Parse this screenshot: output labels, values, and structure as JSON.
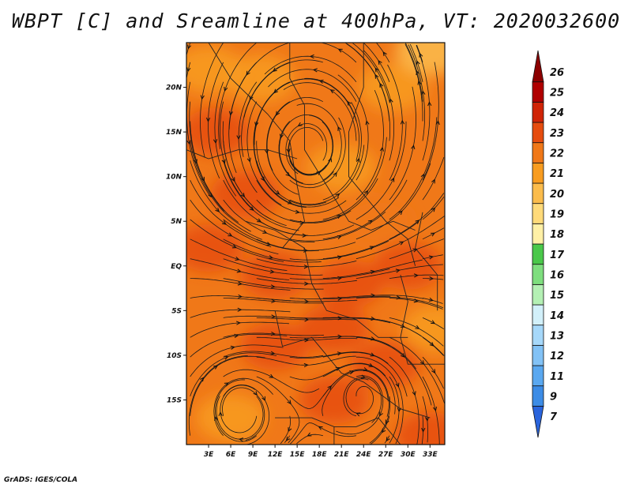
{
  "title": "WBPT [C] and Sreamline at 400hPa, VT: 2020032600",
  "credit": "GrADS: IGES/COLA",
  "map": {
    "lon_range": [
      0,
      35
    ],
    "lat_range": [
      -20,
      25
    ],
    "lon_ticks": [
      {
        "value": 3,
        "label": "3E"
      },
      {
        "value": 6,
        "label": "6E"
      },
      {
        "value": 9,
        "label": "9E"
      },
      {
        "value": 12,
        "label": "12E"
      },
      {
        "value": 15,
        "label": "15E"
      },
      {
        "value": 18,
        "label": "18E"
      },
      {
        "value": 21,
        "label": "21E"
      },
      {
        "value": 24,
        "label": "24E"
      },
      {
        "value": 27,
        "label": "27E"
      },
      {
        "value": 30,
        "label": "30E"
      },
      {
        "value": 33,
        "label": "33E"
      }
    ],
    "lat_ticks": [
      {
        "value": 20,
        "label": "20N"
      },
      {
        "value": 15,
        "label": "15N"
      },
      {
        "value": 10,
        "label": "10N"
      },
      {
        "value": 5,
        "label": "5N"
      },
      {
        "value": 0,
        "label": "EQ"
      },
      {
        "value": -5,
        "label": "5S"
      },
      {
        "value": -10,
        "label": "10S"
      },
      {
        "value": -15,
        "label": "15S"
      }
    ],
    "vortices": [
      {
        "lon": 16.5,
        "lat": 13,
        "sense": "cyclonic",
        "strength": 1.0
      },
      {
        "lon": 7,
        "lat": -16,
        "sense": "anticyclonic",
        "strength": 0.6
      },
      {
        "lon": 24,
        "lat": -14.5,
        "sense": "anticyclonic",
        "strength": 0.5
      }
    ],
    "wbpt_zones": [
      {
        "lon": 4,
        "lat": 15,
        "value": 23
      },
      {
        "lon": 8,
        "lat": 8,
        "value": 23
      },
      {
        "lon": 3,
        "lat": 2,
        "value": 23
      },
      {
        "lon": 12,
        "lat": -1,
        "value": 23
      },
      {
        "lon": 22,
        "lat": -2,
        "value": 23
      },
      {
        "lon": 30,
        "lat": 0,
        "value": 23
      },
      {
        "lon": 20,
        "lat": -7,
        "value": 23
      },
      {
        "lon": 12,
        "lat": -9,
        "value": 23
      },
      {
        "lon": 27,
        "lat": -11,
        "value": 23
      },
      {
        "lon": 20,
        "lat": -15,
        "value": 23
      },
      {
        "lon": 33,
        "lat": -19,
        "value": 23
      },
      {
        "lon": 21,
        "lat": 11,
        "value": 21
      },
      {
        "lon": 26,
        "lat": 5,
        "value": 22
      },
      {
        "lon": 3,
        "lat": 22,
        "value": 21
      },
      {
        "lon": 10,
        "lat": 21,
        "value": 21
      },
      {
        "lon": 28,
        "lat": 20,
        "value": 21
      },
      {
        "lon": 33,
        "lat": 24,
        "value": 20
      },
      {
        "lon": 6,
        "lat": -17,
        "value": 21
      },
      {
        "lon": 34,
        "lat": -7,
        "value": 21
      },
      {
        "lon": 17,
        "lat": 4,
        "value": 22
      }
    ]
  },
  "colorbar": {
    "colors": [
      "#2a64dc",
      "#3c8ce6",
      "#5aa8f0",
      "#82c2f6",
      "#a6d8fa",
      "#d2f0fa",
      "#b4f0b4",
      "#7ede7e",
      "#4ac84a",
      "#fff0a6",
      "#ffda7a",
      "#fbbc4c",
      "#f89c20",
      "#f07818",
      "#e64c0e",
      "#d02406",
      "#b00000",
      "#8c0000"
    ],
    "labels": [
      "7",
      "9",
      "11",
      "12",
      "13",
      "14",
      "15",
      "16",
      "17",
      "18",
      "19",
      "20",
      "21",
      "22",
      "23",
      "24",
      "25",
      "26"
    ]
  }
}
